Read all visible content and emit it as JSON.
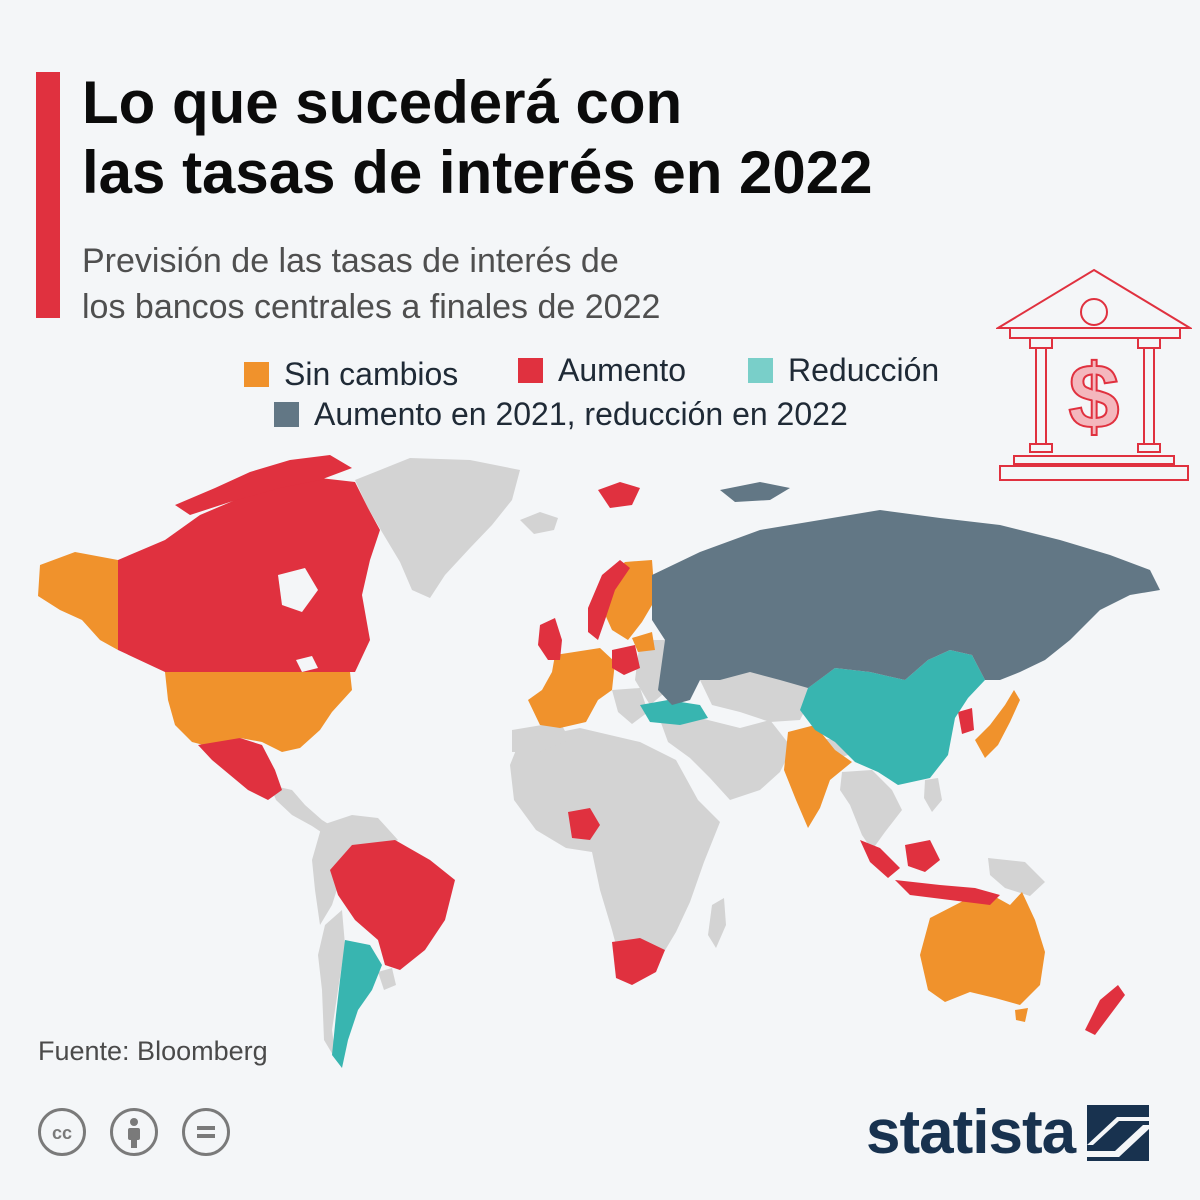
{
  "title_line1": "Lo que sucederá con",
  "title_line2": "las tasas de interés en 2022",
  "subtitle_line1": "Previsión de las tasas de interés de",
  "subtitle_line2": "los bancos centrales a finales de 2022",
  "legend": [
    {
      "label": "Sin cambios",
      "color": "#f0922c"
    },
    {
      "label": "Aumento",
      "color": "#e0313f"
    },
    {
      "label": "Reducción",
      "color": "#79cfc9"
    },
    {
      "label": "Aumento en 2021, reducción en 2022",
      "color": "#627785"
    }
  ],
  "colors": {
    "no_change": "#f0922c",
    "increase": "#e0313f",
    "decrease": "#38b5b0",
    "increase_then_decrease": "#627785",
    "no_data": "#d3d3d3",
    "accent": "#e0313f",
    "brand": "#18324f"
  },
  "icons": [
    "bank-dollar-icon",
    "cc-icon",
    "attribution-icon",
    "no-derivatives-icon",
    "statista-logo-icon"
  ],
  "source": "Fuente: Bloomberg",
  "brand": "statista"
}
